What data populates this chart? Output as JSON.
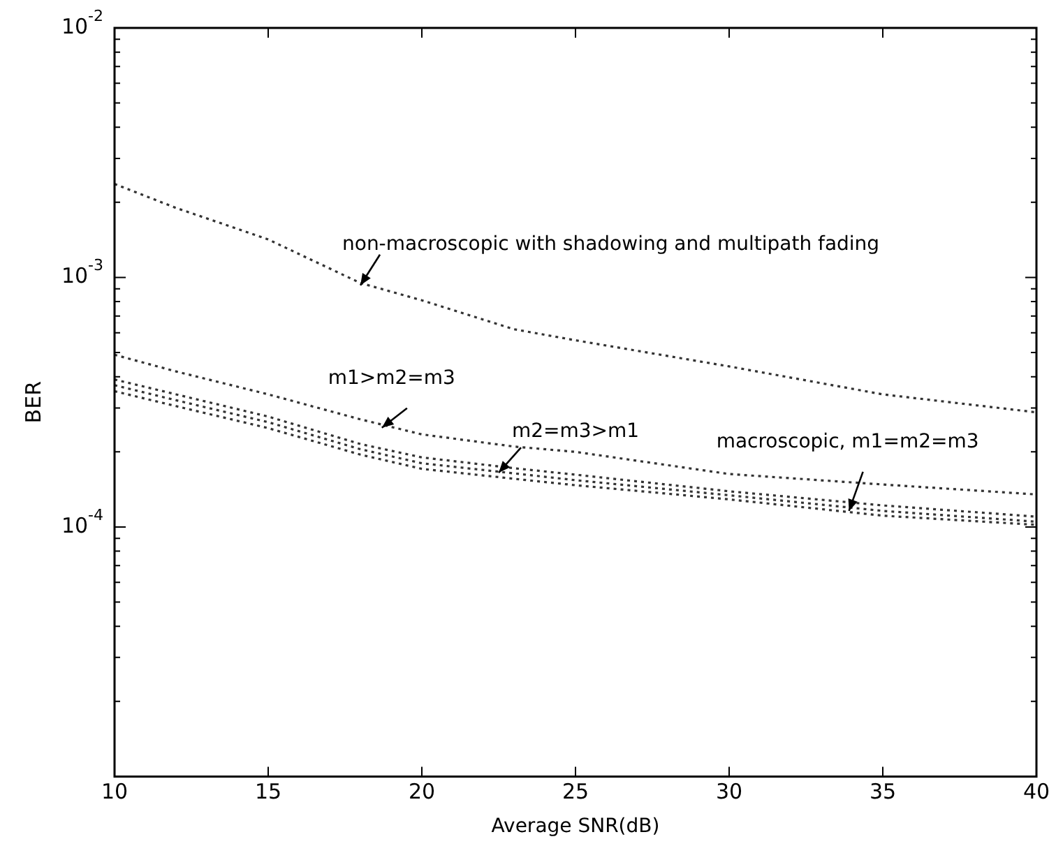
{
  "chart_data": {
    "type": "line",
    "xlabel": "Average SNR(dB)",
    "ylabel": "BER",
    "log": "y",
    "grid": false,
    "legend": false,
    "marker": "none",
    "line_style": "dotted",
    "x": [
      10,
      12,
      15,
      18,
      20,
      23,
      25,
      30,
      35,
      40
    ],
    "xlim": [
      10,
      40
    ],
    "xticks": [
      10,
      15,
      20,
      25,
      30,
      35,
      40
    ],
    "ylim": [
      1e-05,
      0.01
    ],
    "yticks": [
      {
        "value": 1e-05,
        "label": null
      },
      {
        "value": 2e-05,
        "label": null
      },
      {
        "value": 3e-05,
        "label": null
      },
      {
        "value": 4e-05,
        "label": null
      },
      {
        "value": 5e-05,
        "label": null
      },
      {
        "value": 6e-05,
        "label": null
      },
      {
        "value": 7e-05,
        "label": null
      },
      {
        "value": 8e-05,
        "label": null
      },
      {
        "value": 9e-05,
        "label": null
      },
      {
        "value": 0.0001,
        "label": "10$^{-4}$"
      },
      {
        "value": 0.0002,
        "label": null
      },
      {
        "value": 0.0003,
        "label": null
      },
      {
        "value": 0.0004,
        "label": null
      },
      {
        "value": 0.0005,
        "label": null
      },
      {
        "value": 0.0006,
        "label": null
      },
      {
        "value": 0.0007,
        "label": null
      },
      {
        "value": 0.0008,
        "label": null
      },
      {
        "value": 0.0009,
        "label": null
      },
      {
        "value": 0.001,
        "label": "10$^{-3}$"
      },
      {
        "value": 0.002,
        "label": null
      },
      {
        "value": 0.003,
        "label": null
      },
      {
        "value": 0.004,
        "label": null
      },
      {
        "value": 0.005,
        "label": null
      },
      {
        "value": 0.006,
        "label": null
      },
      {
        "value": 0.007,
        "label": null
      },
      {
        "value": 0.008,
        "label": null
      },
      {
        "value": 0.009,
        "label": null
      },
      {
        "value": 0.01,
        "label": "10$^{-2}$"
      }
    ],
    "series": [
      {
        "color": "#333333",
        "values": [
          0.00237,
          0.0019,
          0.00142,
          0.00095,
          0.00081,
          0.00062,
          0.00056,
          0.00044,
          0.00034,
          0.000288
        ]
      },
      {
        "color": "#333333",
        "values": [
          0.00049,
          0.00042,
          0.00034,
          0.00027,
          0.000235,
          0.00021,
          0.0002,
          0.000163,
          0.000148,
          0.000135
        ]
      },
      {
        "color": "#333333",
        "values": [
          0.00039,
          0.00034,
          0.000277,
          0.000215,
          0.00019,
          0.000172,
          0.000162,
          0.000139,
          0.000122,
          0.00011
        ]
      },
      {
        "color": "#333333",
        "values": [
          0.00037,
          0.000322,
          0.000263,
          0.000205,
          0.00018,
          0.000164,
          0.000154,
          0.000134,
          0.000116,
          0.000105
        ]
      },
      {
        "color": "#333333",
        "values": [
          0.00035,
          0.000305,
          0.000249,
          0.000195,
          0.000171,
          0.000156,
          0.000147,
          0.000129,
          0.000111,
          0.000102
        ]
      }
    ],
    "annotations": [
      {
        "text": "non-macroscopic with shadowing and multipath fading",
        "x": 18,
        "y": 0.00093
      },
      {
        "text": "m1>m2=m3",
        "x": 18.7,
        "y": 0.00025
      },
      {
        "text": "m2=m3>m1",
        "x": 22.5,
        "y": 0.000165
      },
      {
        "text": "macroscopic, m1=m2=m3",
        "x": 33.9,
        "y": 0.000116
      }
    ]
  }
}
